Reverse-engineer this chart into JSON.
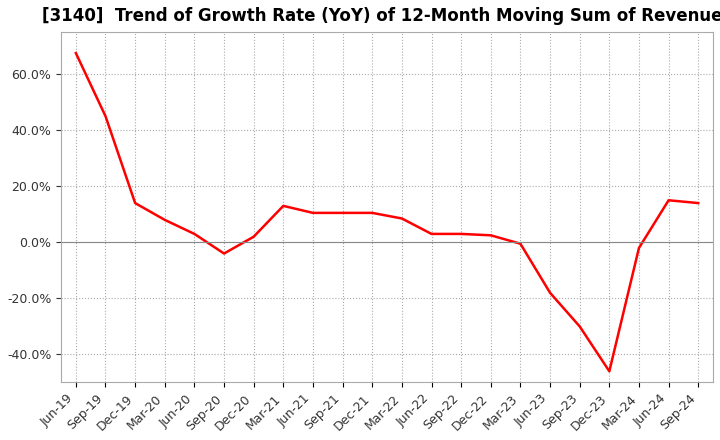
{
  "title": "[3140]  Trend of Growth Rate (YoY) of 12-Month Moving Sum of Revenues",
  "line_color": "#FF0000",
  "background_color": "#FFFFFF",
  "grid_color": "#AAAAAA",
  "x_labels": [
    "Jun-19",
    "Sep-19",
    "Dec-19",
    "Mar-20",
    "Jun-20",
    "Sep-20",
    "Dec-20",
    "Mar-21",
    "Jun-21",
    "Sep-21",
    "Dec-21",
    "Mar-22",
    "Jun-22",
    "Sep-22",
    "Dec-22",
    "Mar-23",
    "Jun-23",
    "Sep-23",
    "Dec-23",
    "Mar-24",
    "Jun-24",
    "Sep-24"
  ],
  "values": [
    0.675,
    0.45,
    0.14,
    0.08,
    0.03,
    -0.04,
    0.02,
    0.13,
    0.105,
    0.105,
    0.105,
    0.085,
    0.03,
    0.03,
    0.025,
    -0.005,
    -0.18,
    -0.3,
    -0.46,
    -0.02,
    0.15,
    0.14
  ],
  "ylim": [
    -0.5,
    0.75
  ],
  "yticks": [
    -0.4,
    -0.2,
    0.0,
    0.2,
    0.4,
    0.6
  ],
  "title_fontsize": 12,
  "tick_fontsize": 9,
  "linewidth": 1.8,
  "zero_line_color": "#888888",
  "spine_color": "#AAAAAA"
}
